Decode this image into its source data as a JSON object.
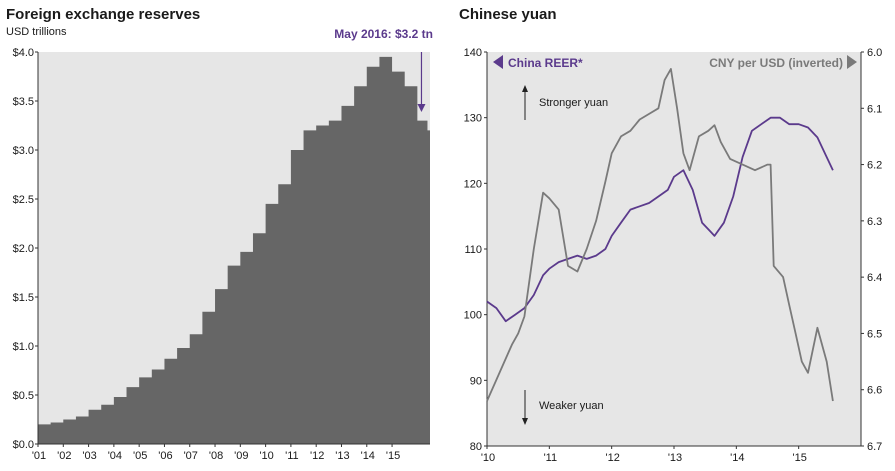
{
  "left": {
    "title": "Foreign exchange reserves",
    "subtitle": "USD trillions",
    "annotation": "May 2016: $3.2 tn"
  },
  "right": {
    "title": "Chinese yuan",
    "legend_left": "China REER*",
    "legend_right": "CNY per USD (inverted)",
    "stronger_label": "Stronger yuan",
    "weaker_label": "Weaker yuan"
  },
  "colors": {
    "panel_bg": "#e6e6e6",
    "reserves_fill": "#666666",
    "reer_line": "#5b3a8c",
    "cny_line": "#7a7a7a",
    "annotation": "#5b3a8c"
  },
  "chart_data": [
    {
      "type": "area",
      "title": "Foreign exchange reserves",
      "ylabel": "USD trillions",
      "ylim": [
        0,
        4.0
      ],
      "yticks": [
        0,
        0.5,
        1.0,
        1.5,
        2.0,
        2.5,
        3.0,
        3.5,
        4.0
      ],
      "ytick_labels": [
        "$0.0",
        "$0.5",
        "$1.0",
        "$1.5",
        "$2.0",
        "$2.5",
        "$3.0",
        "$3.5",
        "$4.0"
      ],
      "xlim": [
        2001.0,
        2016.5
      ],
      "xticks": [
        2001,
        2002,
        2003,
        2004,
        2005,
        2006,
        2007,
        2008,
        2009,
        2010,
        2011,
        2012,
        2013,
        2014,
        2015
      ],
      "xtick_labels": [
        "'01",
        "'02",
        "'03",
        "'04",
        "'05",
        "'06",
        "'07",
        "'08",
        "'09",
        "'10",
        "'11",
        "'12",
        "'13",
        "'14",
        "'15"
      ],
      "series": [
        {
          "x": [
            2001.0,
            2001.5,
            2002.0,
            2002.5,
            2003.0,
            2003.5,
            2004.0,
            2004.5,
            2005.0,
            2005.5,
            2006.0,
            2006.5,
            2007.0,
            2007.5,
            2008.0,
            2008.5,
            2009.0,
            2009.5,
            2010.0,
            2010.5,
            2011.0,
            2011.5,
            2012.0,
            2012.5,
            2013.0,
            2013.5,
            2014.0,
            2014.5,
            2015.0,
            2015.5,
            2016.0,
            2016.4
          ],
          "values": [
            0.2,
            0.22,
            0.25,
            0.28,
            0.35,
            0.4,
            0.48,
            0.58,
            0.68,
            0.76,
            0.87,
            0.98,
            1.12,
            1.35,
            1.58,
            1.82,
            1.96,
            2.15,
            2.45,
            2.65,
            3.0,
            3.2,
            3.25,
            3.3,
            3.45,
            3.65,
            3.85,
            3.95,
            3.8,
            3.65,
            3.3,
            3.2
          ]
        }
      ],
      "annotation": "May 2016: $3.2 tn"
    },
    {
      "type": "line",
      "title": "Chinese yuan",
      "xlim": [
        2010.0,
        2016.0
      ],
      "xticks": [
        2010,
        2011,
        2012,
        2013,
        2014,
        2015
      ],
      "xtick_labels": [
        "'10",
        "'11",
        "'12",
        "'13",
        "'14",
        "'15"
      ],
      "y_left": {
        "ylim": [
          80,
          140
        ],
        "ticks": [
          80,
          90,
          100,
          110,
          120,
          130,
          140
        ],
        "tick_labels": [
          "80",
          "90",
          "100",
          "110",
          "120",
          "130",
          "140"
        ]
      },
      "y_right": {
        "ylim": [
          6.7,
          6.0
        ],
        "inverted": true,
        "ticks": [
          6.0,
          6.1,
          6.2,
          6.3,
          6.4,
          6.5,
          6.6,
          6.7
        ],
        "tick_labels": [
          "6.0",
          "6.1",
          "6.2",
          "6.3",
          "6.4",
          "6.5",
          "6.6",
          "6.7"
        ]
      },
      "series": [
        {
          "name": "China REER*",
          "axis": "left",
          "x": [
            2010.0,
            2010.15,
            2010.3,
            2010.45,
            2010.6,
            2010.75,
            2010.9,
            2011.0,
            2011.15,
            2011.3,
            2011.45,
            2011.6,
            2011.75,
            2011.9,
            2012.0,
            2012.15,
            2012.3,
            2012.45,
            2012.6,
            2012.75,
            2012.9,
            2013.0,
            2013.15,
            2013.3,
            2013.45,
            2013.55,
            2013.65,
            2013.8,
            2013.95,
            2014.1,
            2014.25,
            2014.4,
            2014.55,
            2014.7,
            2014.85,
            2015.0,
            2015.15,
            2015.3,
            2015.45,
            2015.55
          ],
          "values": [
            102,
            101,
            99,
            100,
            101,
            103,
            106,
            107,
            108,
            108.5,
            109,
            108.5,
            109,
            110,
            112,
            114,
            116,
            116.5,
            117,
            118,
            119,
            121,
            122,
            119,
            114,
            113,
            112,
            114,
            118,
            124,
            128,
            129,
            130,
            130,
            129,
            129,
            128.5,
            127,
            124,
            122
          ]
        },
        {
          "name": "CNY per USD (inverted)",
          "axis": "right",
          "x": [
            2010.0,
            2010.2,
            2010.4,
            2010.5,
            2010.6,
            2010.75,
            2010.9,
            2011.0,
            2011.15,
            2011.3,
            2011.45,
            2011.6,
            2011.75,
            2011.9,
            2012.0,
            2012.15,
            2012.3,
            2012.45,
            2012.6,
            2012.75,
            2012.85,
            2012.95,
            2013.05,
            2013.15,
            2013.25,
            2013.4,
            2013.55,
            2013.65,
            2013.75,
            2013.9,
            2014.1,
            2014.3,
            2014.5,
            2014.55,
            2014.6,
            2014.75,
            2014.85,
            2014.95,
            2015.05,
            2015.15,
            2015.3,
            2015.45,
            2015.55
          ],
          "values": [
            6.62,
            6.57,
            6.52,
            6.5,
            6.47,
            6.35,
            6.25,
            6.26,
            6.28,
            6.38,
            6.39,
            6.35,
            6.3,
            6.23,
            6.18,
            6.15,
            6.14,
            6.12,
            6.11,
            6.1,
            6.05,
            6.03,
            6.1,
            6.18,
            6.21,
            6.15,
            6.14,
            6.13,
            6.16,
            6.19,
            6.2,
            6.21,
            6.2,
            6.2,
            6.38,
            6.4,
            6.45,
            6.5,
            6.55,
            6.57,
            6.49,
            6.55,
            6.62
          ]
        }
      ],
      "annotations": [
        "Stronger yuan",
        "Weaker yuan"
      ]
    }
  ]
}
